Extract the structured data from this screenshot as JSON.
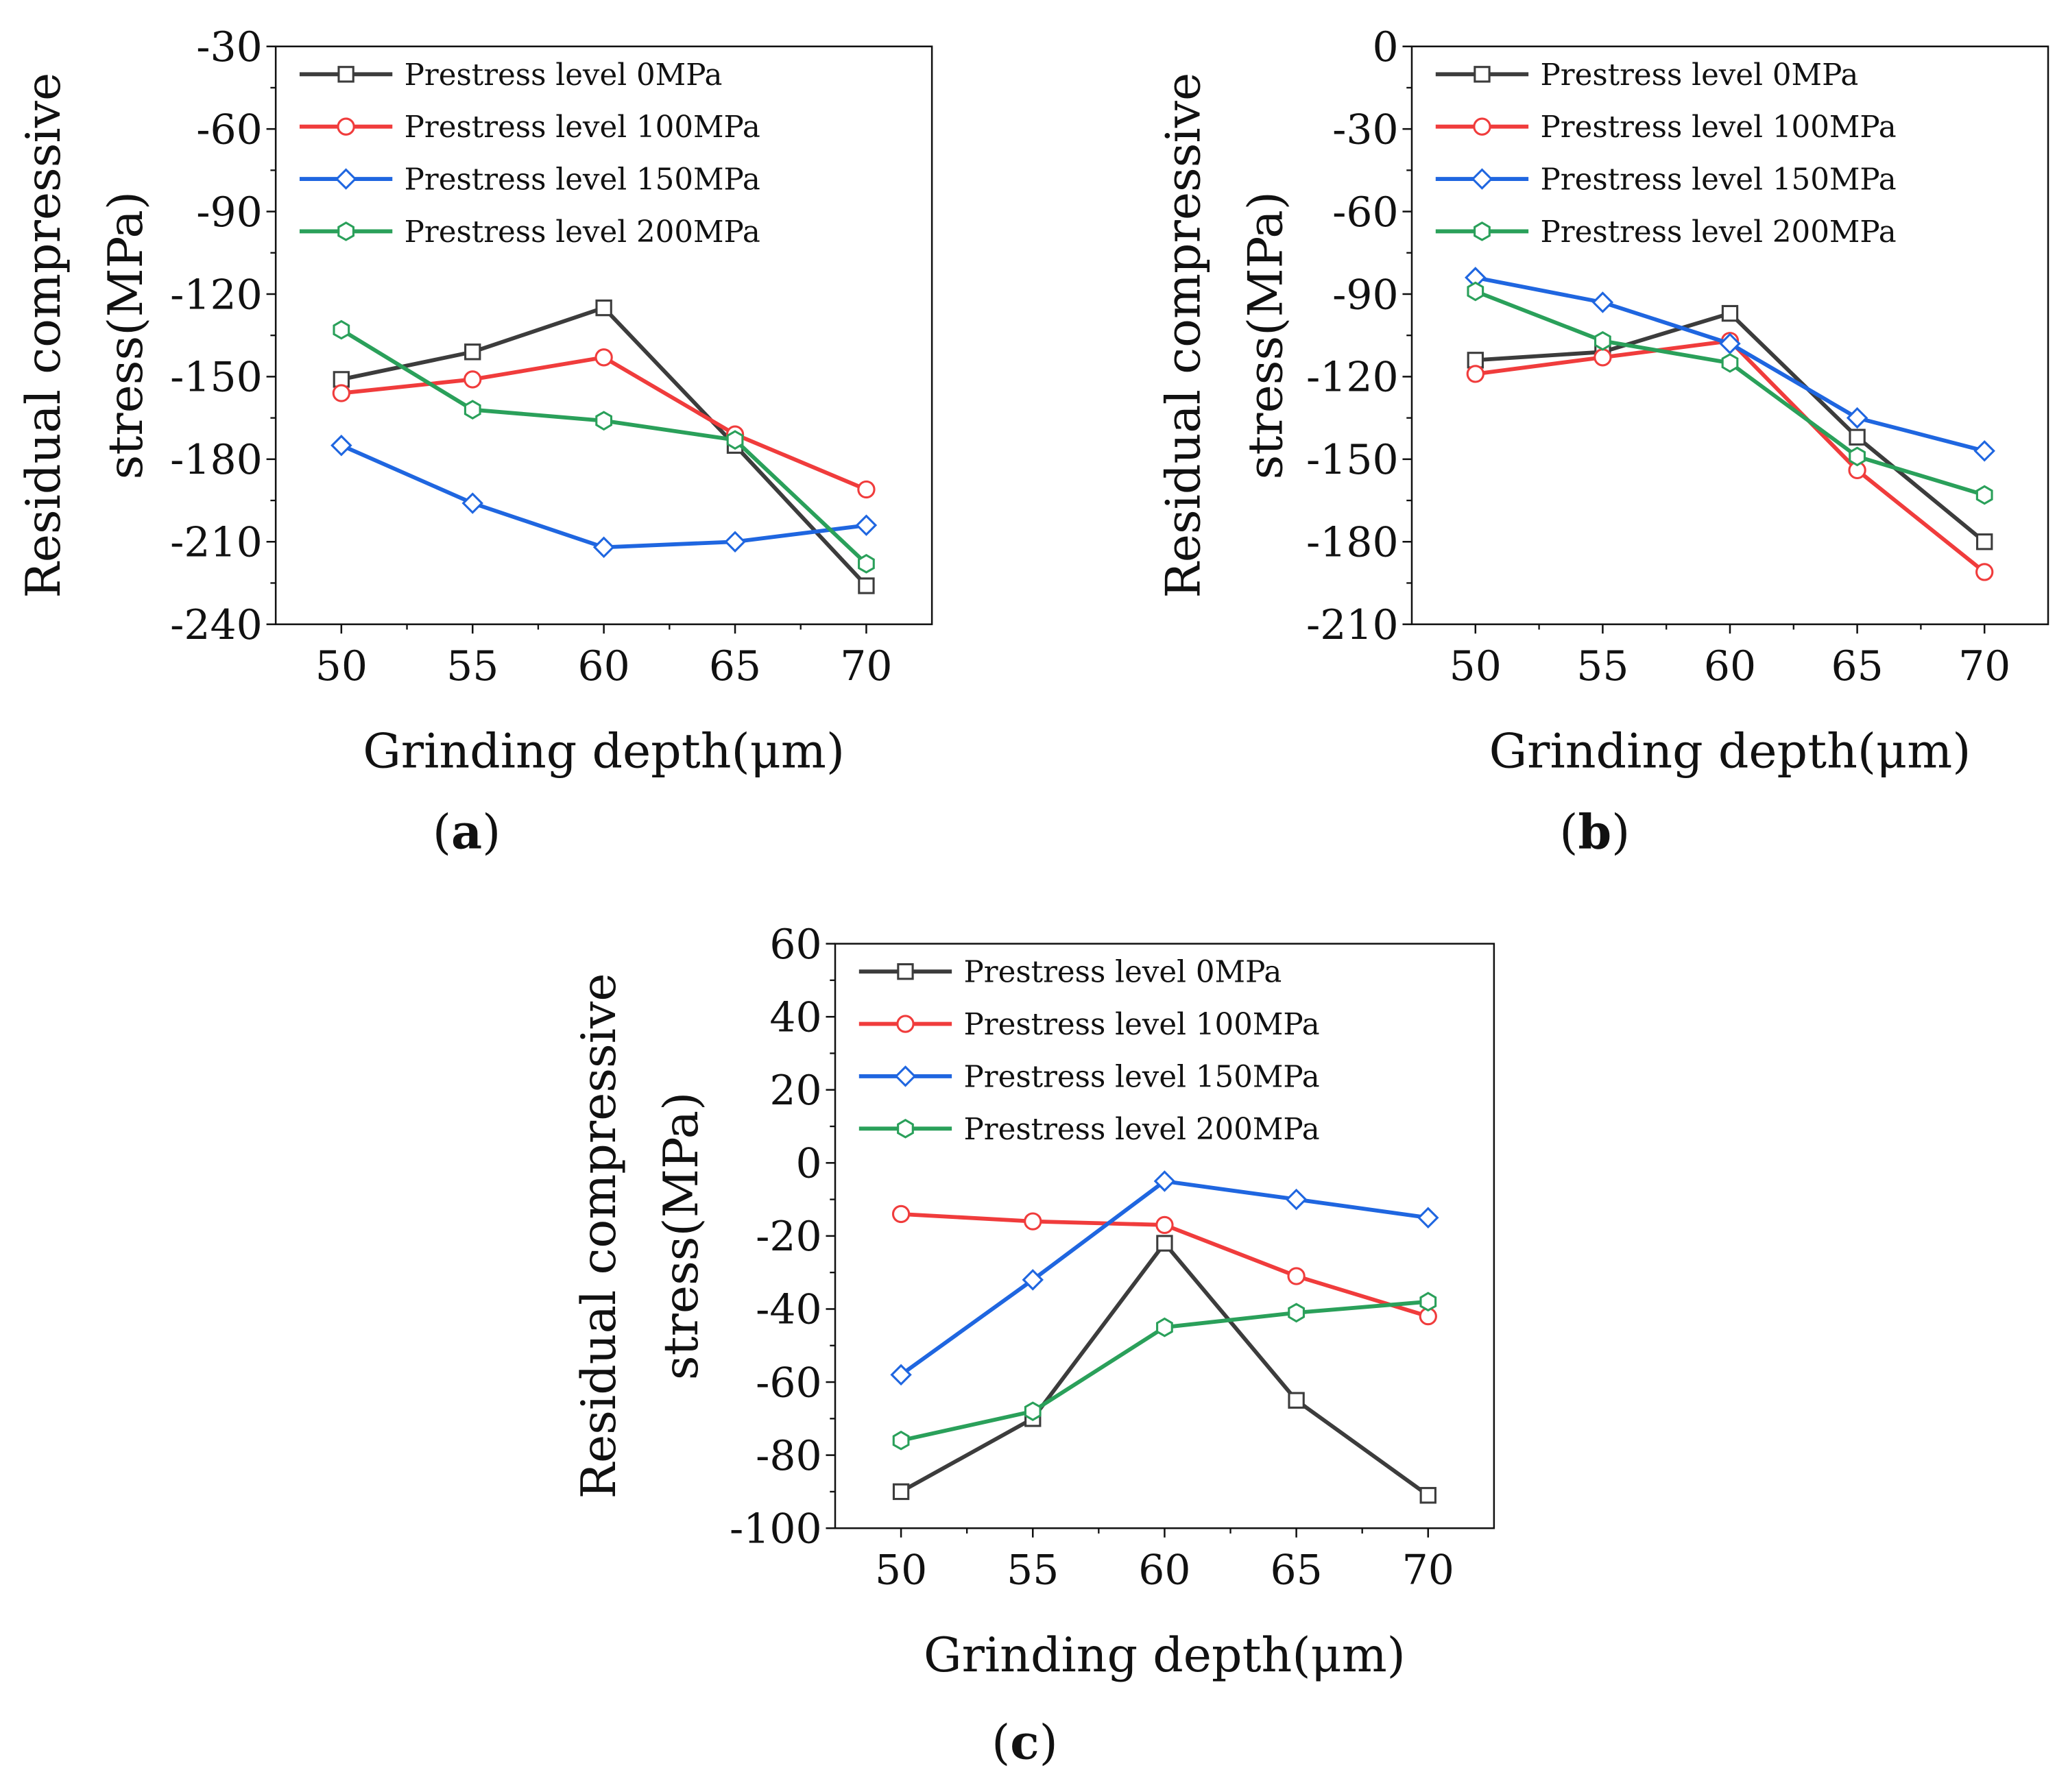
{
  "colors": {
    "s0": "#3c3c3c",
    "s100": "#f03c3c",
    "s150": "#1f66e0",
    "s200": "#2aa05a"
  },
  "chart_data": [
    {
      "type": "line",
      "panel_label": "a",
      "xlabel": "Grinding depth(μm)",
      "ylabel": [
        "Residual compressive",
        "stress(MPa)"
      ],
      "x": [
        50,
        55,
        60,
        65,
        70
      ],
      "xticks": [
        "50",
        "55",
        "60",
        "65",
        "70"
      ],
      "xlim": [
        47.5,
        72.5
      ],
      "ylim": [
        -240,
        -30
      ],
      "yticks": [
        -30,
        -60,
        -90,
        -120,
        -150,
        -180,
        -210,
        -240
      ],
      "legend": "top-left",
      "series": [
        {
          "name": "Prestress level 0MPa",
          "marker": "square",
          "color": "#3c3c3c",
          "values": [
            -151,
            -141,
            -125,
            -175,
            -226
          ]
        },
        {
          "name": "Prestress level 100MPa",
          "marker": "circle",
          "color": "#f03c3c",
          "values": [
            -156,
            -151,
            -143,
            -171,
            -191
          ]
        },
        {
          "name": "Prestress level 150MPa",
          "marker": "diamond",
          "color": "#1f66e0",
          "values": [
            -175,
            -196,
            -212,
            -210,
            -204
          ]
        },
        {
          "name": "Prestress level 200MPa",
          "marker": "hexagon",
          "color": "#2aa05a",
          "values": [
            -133,
            -162,
            -166,
            -173,
            -218
          ]
        }
      ]
    },
    {
      "type": "line",
      "panel_label": "b",
      "xlabel": "Grinding depth(μm)",
      "ylabel": [
        "Residual compressive",
        "stress(MPa)"
      ],
      "x": [
        50,
        55,
        60,
        65,
        70
      ],
      "xticks": [
        "50",
        "55",
        "60",
        "65",
        "70"
      ],
      "xlim": [
        47.5,
        72.5
      ],
      "ylim": [
        -210,
        0
      ],
      "yticks": [
        0,
        -30,
        -60,
        -90,
        -120,
        -150,
        -180,
        -210
      ],
      "legend": "top-left",
      "series": [
        {
          "name": "Prestress level 0MPa",
          "marker": "square",
          "color": "#3c3c3c",
          "values": [
            -114,
            -111,
            -97,
            -142,
            -180
          ]
        },
        {
          "name": "Prestress level 100MPa",
          "marker": "circle",
          "color": "#f03c3c",
          "values": [
            -119,
            -113,
            -107,
            -154,
            -191
          ]
        },
        {
          "name": "Prestress level 150MPa",
          "marker": "diamond",
          "color": "#1f66e0",
          "values": [
            -84,
            -93,
            -108,
            -135,
            -147
          ]
        },
        {
          "name": "Prestress level 200MPa",
          "marker": "hexagon",
          "color": "#2aa05a",
          "values": [
            -89,
            -107,
            -115,
            -149,
            -163
          ]
        }
      ]
    },
    {
      "type": "line",
      "panel_label": "c",
      "xlabel": "Grinding depth(μm)",
      "ylabel": [
        "Residual compressive",
        "stress(MPa)"
      ],
      "x": [
        50,
        55,
        60,
        65,
        70
      ],
      "xticks": [
        "50",
        "55",
        "60",
        "65",
        "70"
      ],
      "xlim": [
        47.5,
        72.5
      ],
      "ylim": [
        -100,
        60
      ],
      "yticks": [
        60,
        40,
        20,
        0,
        -20,
        -40,
        -60,
        -80,
        -100
      ],
      "legend": "top-left",
      "series": [
        {
          "name": "Prestress level 0MPa",
          "marker": "square",
          "color": "#3c3c3c",
          "values": [
            -90,
            -70,
            -22,
            -65,
            -91
          ]
        },
        {
          "name": "Prestress level 100MPa",
          "marker": "circle",
          "color": "#f03c3c",
          "values": [
            -14,
            -16,
            -17,
            -31,
            -42
          ]
        },
        {
          "name": "Prestress level 150MPa",
          "marker": "diamond",
          "color": "#1f66e0",
          "values": [
            -58,
            -32,
            -5,
            -10,
            -15
          ]
        },
        {
          "name": "Prestress level 200MPa",
          "marker": "hexagon",
          "color": "#2aa05a",
          "values": [
            -76,
            -68,
            -45,
            -41,
            -38
          ]
        }
      ]
    }
  ]
}
